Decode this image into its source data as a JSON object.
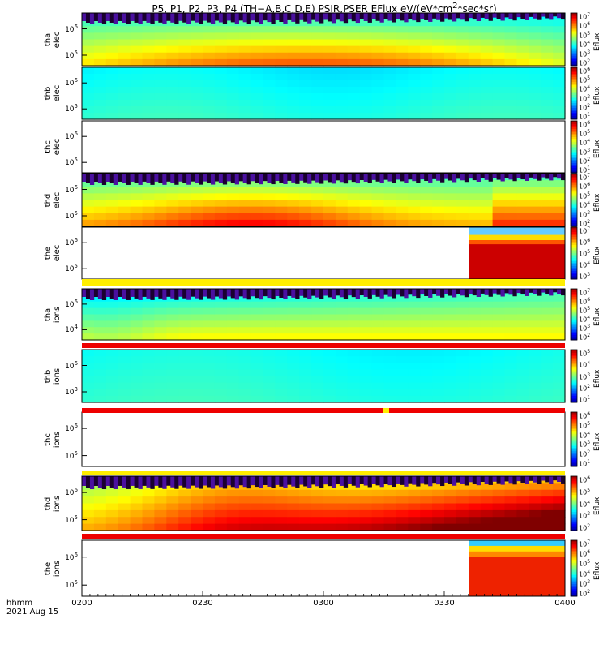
{
  "title": "P5, P1, P2, P3, P4 (TH-A,B,C,D,E) PSIR,PSER EFlux eV/(eV*cm^2*sec*sr)",
  "title_parts": {
    "before": "P5, P1, P2, P3, P4 (TH−A,B,C,D,E) PSIR,PSER EFlux eV/(eV*cm",
    "sup": "2",
    "after": "*sec*sr)"
  },
  "x_axis": {
    "label_line1": "hhmm",
    "label_line2": "2021 Aug 15",
    "ticks": [
      "0200",
      "0230",
      "0300",
      "0330",
      "0400"
    ]
  },
  "colorbar_label": "Eflux",
  "panels": [
    {
      "probe": "tha",
      "species": "elec",
      "yticks": [
        "10^6",
        "10^5"
      ],
      "cbar": [
        7,
        6,
        5,
        4,
        3,
        2
      ],
      "cbar_bottom": 2,
      "filled": true
    },
    {
      "probe": "thb",
      "species": "elec",
      "yticks": [
        "10^6",
        "10^5"
      ],
      "cbar": [
        6,
        5,
        4,
        3,
        2,
        1
      ],
      "cbar_bottom": 1,
      "filled": true
    },
    {
      "probe": "thc",
      "species": "elec",
      "yticks": [
        "10^6",
        "10^5"
      ],
      "cbar": [
        6,
        5,
        4,
        3,
        2,
        1
      ],
      "cbar_bottom": 1,
      "filled": false
    },
    {
      "probe": "thd",
      "species": "elec",
      "yticks": [
        "10^6",
        "10^5"
      ],
      "cbar": [
        7,
        6,
        5,
        4,
        3,
        2
      ],
      "cbar_bottom": 2,
      "filled": true
    },
    {
      "probe": "the",
      "species": "elec",
      "yticks": [
        "10^6",
        "10^5"
      ],
      "cbar": [
        7,
        6,
        5,
        4,
        3
      ],
      "cbar_bottom": 3,
      "filled": "partial"
    },
    {
      "probe": "tha",
      "species": "ions",
      "yticks": [
        "10^6",
        "10^4"
      ],
      "cbar": [
        7,
        6,
        5,
        4,
        3,
        2
      ],
      "cbar_bottom": 2,
      "filled": true
    },
    {
      "probe": "thb",
      "species": "ions",
      "yticks": [
        "10^6",
        "10^3"
      ],
      "cbar": [
        5,
        4,
        3,
        2,
        1
      ],
      "cbar_bottom": 1,
      "filled": true
    },
    {
      "probe": "thc",
      "species": "ions",
      "yticks": [
        "10^6",
        "10^5"
      ],
      "cbar": [
        6,
        5,
        4,
        3,
        2,
        1
      ],
      "cbar_bottom": 1,
      "filled": false
    },
    {
      "probe": "thd",
      "species": "ions",
      "yticks": [
        "10^6",
        "10^5"
      ],
      "cbar": [
        6,
        5,
        4,
        3,
        2
      ],
      "cbar_bottom": 2,
      "filled": true
    },
    {
      "probe": "the",
      "species": "ions",
      "yticks": [
        "10^6",
        "10^5"
      ],
      "cbar": [
        7,
        6,
        5,
        4,
        3,
        2
      ],
      "cbar_bottom": 2,
      "filled": "partial"
    }
  ],
  "bar_colors": {
    "yellow": "#ffee00",
    "red": "#ee0000"
  }
}
